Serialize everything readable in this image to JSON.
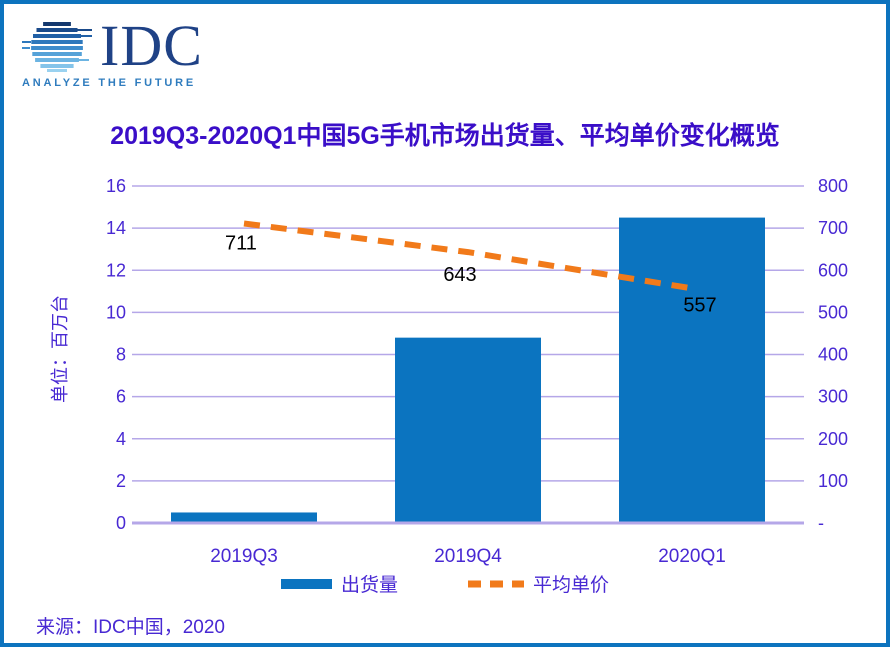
{
  "logo": {
    "text": "IDC",
    "tagline": "ANALYZE THE FUTURE"
  },
  "chart_data": {
    "type": "bar",
    "combo": "bar + dashed line (dual axis)",
    "title": "2019Q3-2020Q1中国5G手机市场出货量、平均单价变化概览",
    "categories": [
      "2019Q3",
      "2019Q4",
      "2020Q1"
    ],
    "series": [
      {
        "name": "出货量",
        "type": "bar",
        "axis": "left",
        "values": [
          0.5,
          8.8,
          14.5
        ]
      },
      {
        "name": "平均单价",
        "type": "dashed-line",
        "axis": "right",
        "values": [
          711,
          643,
          557
        ],
        "data_labels": [
          "711",
          "643",
          "557"
        ]
      }
    ],
    "left_axis": {
      "title": "单位：百万台",
      "min": 0,
      "max": 16,
      "step": 2,
      "ticks": [
        "0",
        "2",
        "4",
        "6",
        "8",
        "10",
        "12",
        "14",
        "16"
      ]
    },
    "right_axis": {
      "min": 0,
      "max": 800,
      "step": 100,
      "ticks": [
        "-",
        "100",
        "200",
        "300",
        "400",
        "500",
        "600",
        "700",
        "800"
      ]
    },
    "grid": true,
    "legend_position": "bottom"
  },
  "source": "来源：IDC中国，2020",
  "colors": {
    "border_blue": "#0D73BE",
    "bar_blue": "#0B74C0",
    "line_orange": "#F17A1A",
    "grid_purple": "#B5A7E8",
    "text_violet": "#4829D3",
    "title_violet": "#3A0EC8",
    "data_label_black": "#000000",
    "logo_navy": "#1F4286",
    "tagline_blue": "#2F7CBE"
  }
}
